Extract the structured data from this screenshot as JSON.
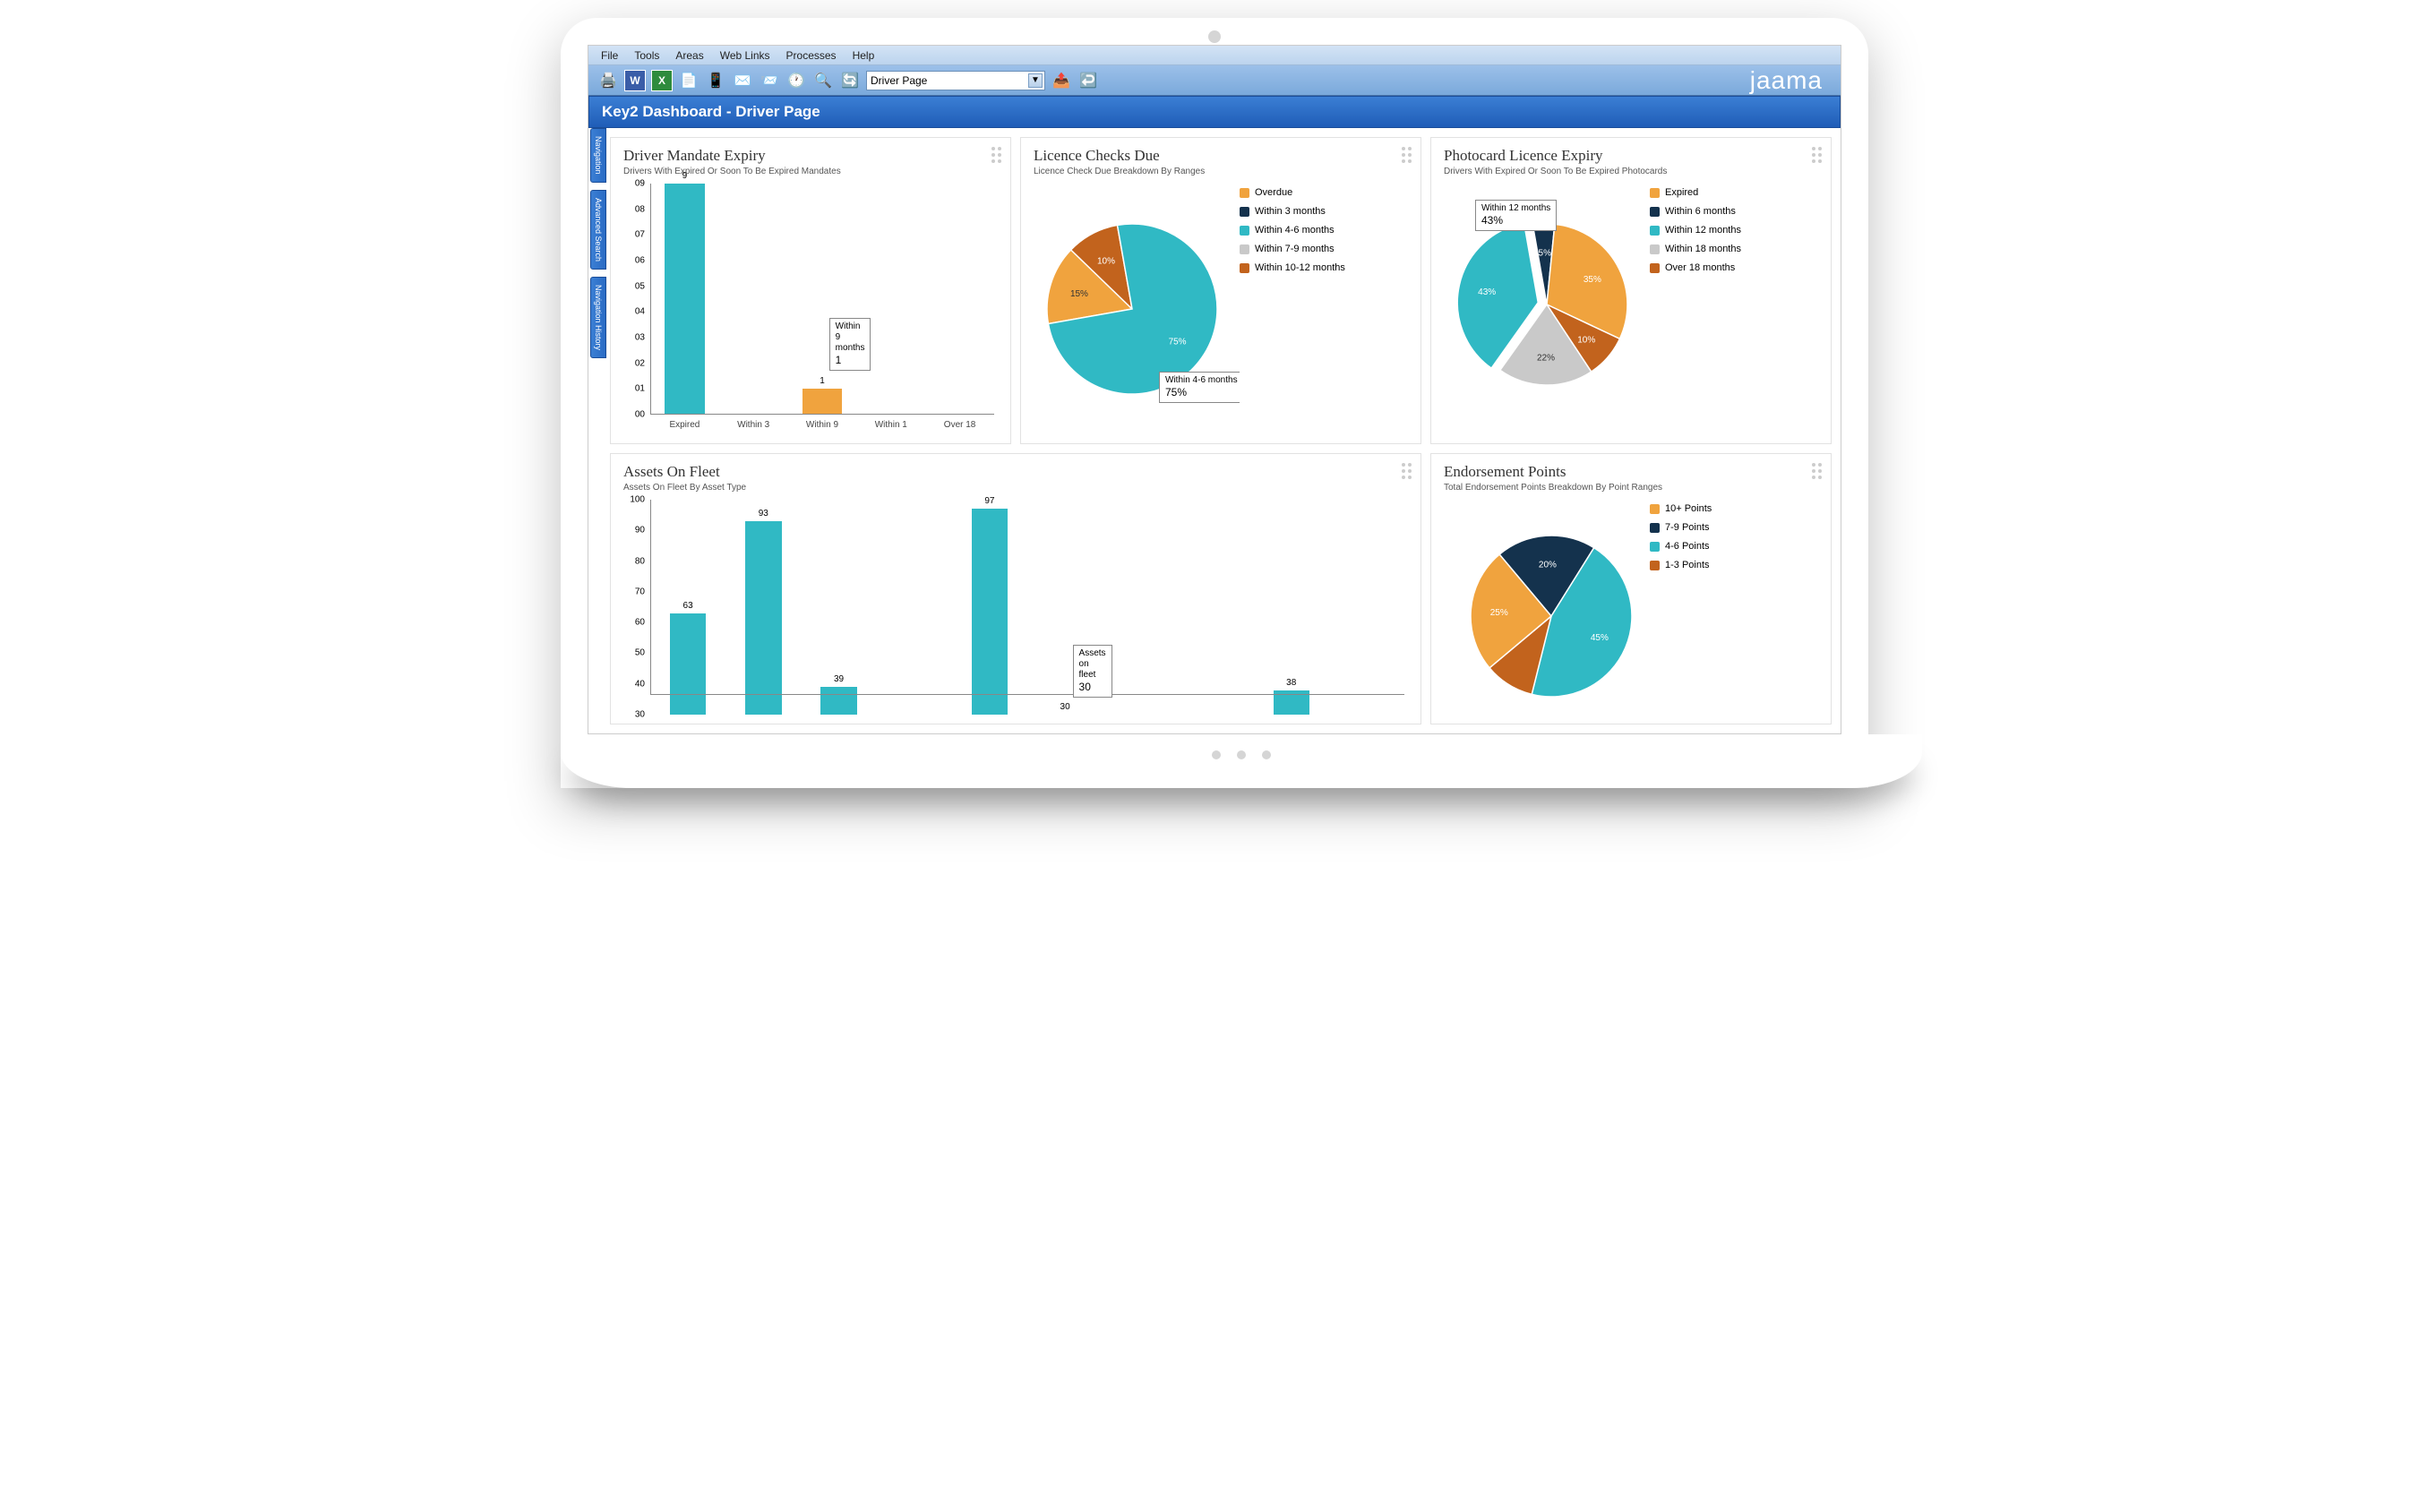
{
  "menus": [
    "File",
    "Tools",
    "Areas",
    "Web Links",
    "Processes",
    "Help"
  ],
  "toolbar": {
    "dropdown_value": "Driver Page",
    "brand": "jaama"
  },
  "titlebar": "Key2 Dashboard - Driver Page",
  "sidetabs": [
    "Navigation",
    "Advanced Search",
    "Navigation History"
  ],
  "colors": {
    "teal": "#30b9c4",
    "orange": "#f0a33e",
    "navy": "#14324d",
    "grey": "#c9c9c9",
    "rust": "#c2631d"
  },
  "p1": {
    "title": "Driver Mandate Expiry",
    "sub": "Drivers With Expired Or Soon To Be Expired Mandates",
    "yticks": [
      "00",
      "01",
      "02",
      "03",
      "04",
      "05",
      "06",
      "07",
      "08",
      "09"
    ],
    "ymax": 9,
    "bars": [
      {
        "label": "Expired",
        "value": 9,
        "color": "#30b9c4"
      },
      {
        "label": "Within 3",
        "value": 0,
        "color": "#30b9c4"
      },
      {
        "label": "Within 9",
        "value": 1,
        "color": "#f0a33e"
      },
      {
        "label": "Within 1",
        "value": 0,
        "color": "#30b9c4"
      },
      {
        "label": "Over 18",
        "value": 0,
        "color": "#30b9c4"
      }
    ],
    "callout": {
      "title": "Within 9 months",
      "value": "1"
    }
  },
  "p2": {
    "title": "Licence Checks Due",
    "sub": "Licence Check Due Breakdown By Ranges",
    "legend": [
      {
        "label": "Overdue",
        "color": "#f0a33e"
      },
      {
        "label": "Within 3 months",
        "color": "#14324d"
      },
      {
        "label": "Within 4-6 months",
        "color": "#30b9c4"
      },
      {
        "label": "Within 7-9 months",
        "color": "#c9c9c9"
      },
      {
        "label": "Within 10-12 months",
        "color": "#c2631d"
      }
    ],
    "slices": [
      {
        "pct": 15,
        "color": "#f0a33e",
        "label": "15%",
        "dark": true
      },
      {
        "pct": 10,
        "color": "#c2631d",
        "label": "10%"
      },
      {
        "pct": 75,
        "color": "#30b9c4",
        "label": "75%"
      }
    ],
    "callout": {
      "title": "Within 4-6 months",
      "value": "75%"
    }
  },
  "p3": {
    "title": "Photocard Licence Expiry",
    "sub": "Drivers With Expired Or Soon To Be Expired Photocards",
    "legend": [
      {
        "label": "Expired",
        "color": "#f0a33e"
      },
      {
        "label": "Within 6 months",
        "color": "#14324d"
      },
      {
        "label": "Within 12 months",
        "color": "#30b9c4"
      },
      {
        "label": "Within 18 months",
        "color": "#c9c9c9"
      },
      {
        "label": "Over 18 months",
        "color": "#c2631d"
      }
    ],
    "slices": [
      {
        "pct": 5,
        "color": "#14324d",
        "label": "5%"
      },
      {
        "pct": 35,
        "color": "#f0a33e",
        "label": "35%"
      },
      {
        "pct": 10,
        "color": "#c2631d",
        "label": "10%"
      },
      {
        "pct": 22,
        "color": "#c9c9c9",
        "label": "22%",
        "dark": true
      },
      {
        "pct": 43,
        "color": "#30b9c4",
        "label": "43%"
      }
    ],
    "callout": {
      "title": "Within 12 months",
      "value": "43%"
    },
    "explode_index": 4
  },
  "p4": {
    "title": "Assets On Fleet",
    "sub": "Assets On Fleet By Asset Type",
    "yticks": [
      "30",
      "40",
      "50",
      "60",
      "70",
      "80",
      "90",
      "100"
    ],
    "ymin": 30,
    "ymax": 100,
    "bars": [
      {
        "value": 63,
        "color": "#30b9c4"
      },
      {
        "value": 93,
        "color": "#30b9c4"
      },
      {
        "value": 39,
        "color": "#30b9c4"
      },
      {
        "value": 0,
        "color": "#30b9c4"
      },
      {
        "value": 97,
        "color": "#30b9c4"
      },
      {
        "value": 30,
        "color": "#f0a33e"
      },
      {
        "value": 0,
        "color": "#30b9c4"
      },
      {
        "value": 0,
        "color": "#30b9c4"
      },
      {
        "value": 38,
        "color": "#30b9c4"
      },
      {
        "value": 0,
        "color": "#30b9c4"
      }
    ],
    "callout": {
      "title": "Assets on fleet",
      "value": "30"
    }
  },
  "p5": {
    "title": "Endorsement Points",
    "sub": "Total Endorsement Points Breakdown By Point Ranges",
    "legend": [
      {
        "label": "10+ Points",
        "color": "#f0a33e"
      },
      {
        "label": "7-9 Points",
        "color": "#14324d"
      },
      {
        "label": "4-6 Points",
        "color": "#30b9c4"
      },
      {
        "label": "1-3 Points",
        "color": "#c2631d"
      }
    ],
    "slices": [
      {
        "pct": 20,
        "color": "#14324d",
        "label": "20%"
      },
      {
        "pct": 45,
        "color": "#30b9c4",
        "label": "45%"
      },
      {
        "pct": 10,
        "color": "#c2631d",
        "label": ""
      },
      {
        "pct": 25,
        "color": "#f0a33e",
        "label": "25%"
      }
    ]
  }
}
